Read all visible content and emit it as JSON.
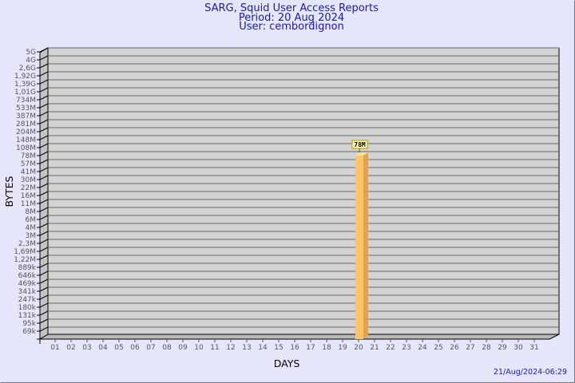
{
  "title": {
    "line1": "SARG, Squid User Access Reports",
    "line2": "Period: 20 Aug 2024",
    "line3": "User: cembordignon"
  },
  "timestamp": "21/Aug/2024-06:29",
  "colors": {
    "background": "#e6e6fa",
    "wall": "#d3d3d3",
    "bar": "#ffc468",
    "bar_side": "#e0a44c",
    "title": "#1a1aa6"
  },
  "chart_data": {
    "type": "bar",
    "xlabel": "DAYS",
    "ylabel": "BYTES",
    "y_scale": "log",
    "y_ticks": [
      "5G",
      "4G",
      "2,6G",
      "1,92G",
      "1,39G",
      "1,01G",
      "734M",
      "533M",
      "387M",
      "281M",
      "204M",
      "148M",
      "108M",
      "78M",
      "57M",
      "41M",
      "30M",
      "22M",
      "16M",
      "11M",
      "8M",
      "6M",
      "4M",
      "3M",
      "2,3M",
      "1,69M",
      "1,22M",
      "889k",
      "646k",
      "469k",
      "341k",
      "247k",
      "180k",
      "131k",
      "95k",
      "69k"
    ],
    "categories": [
      "01",
      "02",
      "03",
      "04",
      "05",
      "06",
      "07",
      "08",
      "09",
      "10",
      "11",
      "12",
      "13",
      "14",
      "15",
      "16",
      "17",
      "18",
      "19",
      "20",
      "21",
      "22",
      "23",
      "24",
      "25",
      "26",
      "27",
      "28",
      "29",
      "30",
      "31"
    ],
    "bars": [
      {
        "day": "20",
        "value": "78M",
        "data_label": "78M"
      }
    ],
    "grid": true
  }
}
